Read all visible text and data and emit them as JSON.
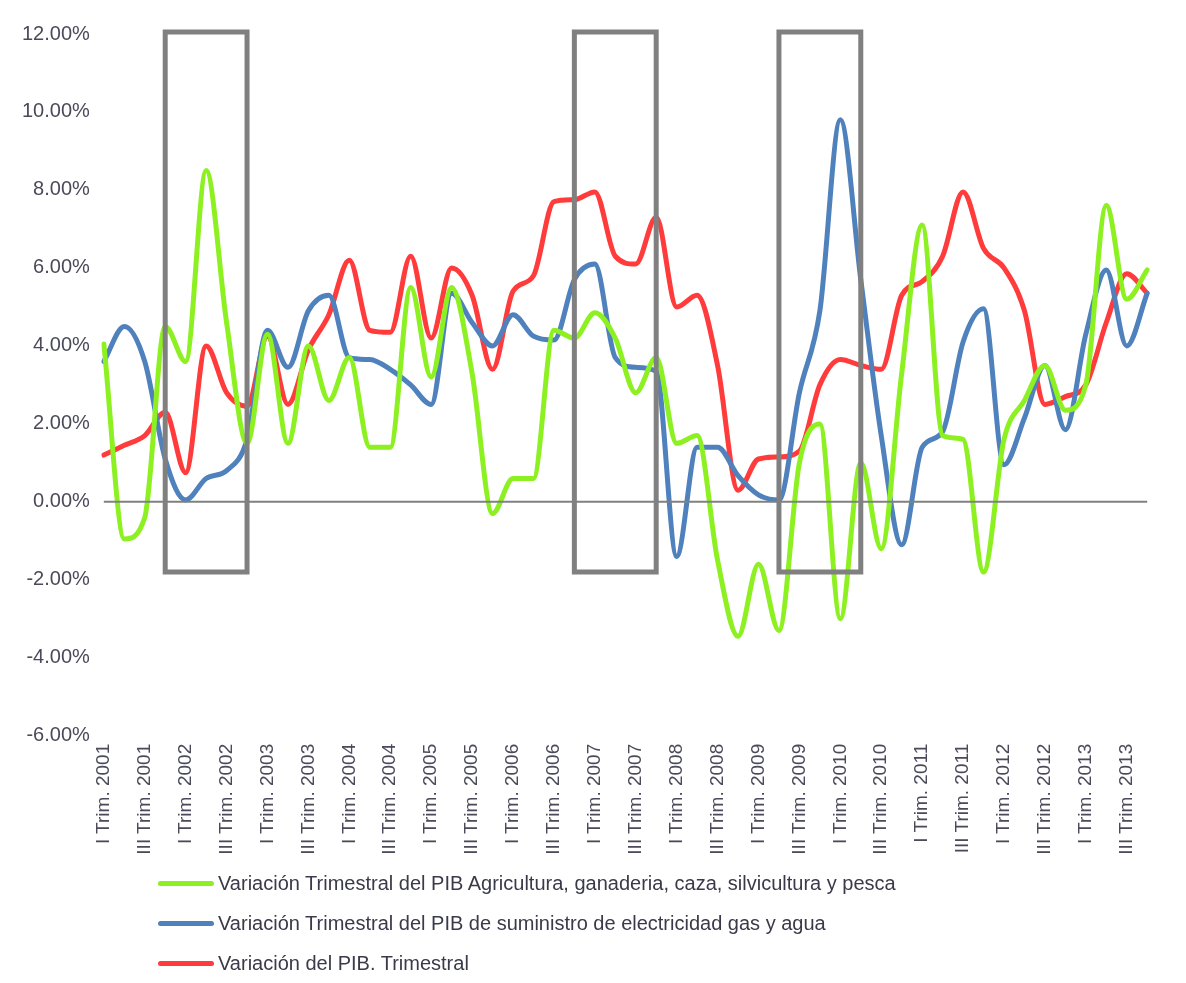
{
  "chart_data": {
    "type": "line",
    "categories": [
      "I Trim. 2001",
      null,
      "III Trim. 2001",
      null,
      "I Trim. 2002",
      null,
      "III Trim. 2002",
      null,
      "I Trim. 2003",
      null,
      "III Trim. 2003",
      null,
      "I Trim. 2004",
      null,
      "III Trim. 2004",
      null,
      "I Trim. 2005",
      null,
      "III Trim. 2005",
      null,
      "I Trim. 2006",
      null,
      "III Trim. 2006",
      null,
      "I Trim. 2007",
      null,
      "III Trim. 2007",
      null,
      "I Trim. 2008",
      null,
      "III Trim. 2008",
      null,
      "I Trim. 2009",
      null,
      "III Trim. 2009",
      null,
      "I Trim. 2010",
      null,
      "III Trim. 2010",
      null,
      "I Trim. 2011",
      null,
      "III Trim. 2011",
      null,
      "I Trim. 2012",
      null,
      "III Trim. 2012",
      null,
      "I Trim. 2013",
      null,
      "III Trim. 2013",
      null
    ],
    "series": [
      {
        "name": "Variación Trimestral del PIB Agricultura, ganaderia, caza, silvicultura y pesca",
        "color": "#8cf021",
        "values": [
          4.05,
          -0.95,
          -0.4,
          4.5,
          3.6,
          8.5,
          4.6,
          1.5,
          4.3,
          1.5,
          4.0,
          2.6,
          3.7,
          1.4,
          1.4,
          5.5,
          3.2,
          5.5,
          3.3,
          -0.3,
          0.6,
          0.6,
          4.4,
          4.2,
          4.85,
          4.2,
          2.8,
          3.7,
          1.5,
          1.7,
          -1.5,
          -3.45,
          -1.6,
          -3.3,
          1.0,
          2.0,
          -3.0,
          1.0,
          -1.2,
          3.3,
          7.1,
          1.7,
          1.6,
          -1.8,
          1.6,
          2.6,
          3.5,
          2.35,
          3.0,
          7.6,
          5.2,
          5.95
        ]
      },
      {
        "name": "Variación Trimestral del PIB de suministro de electricidad gas y agua",
        "color": "#4f81bd",
        "values": [
          3.6,
          4.5,
          3.6,
          1.1,
          0.05,
          0.6,
          0.8,
          1.6,
          4.4,
          3.45,
          4.9,
          5.3,
          3.7,
          3.65,
          3.4,
          3.0,
          2.5,
          5.35,
          4.6,
          4.0,
          4.8,
          4.25,
          4.15,
          5.7,
          6.1,
          3.7,
          3.45,
          3.35,
          -1.4,
          1.4,
          1.4,
          0.67,
          0.18,
          0.05,
          2.8,
          4.9,
          9.8,
          5.7,
          1.7,
          -1.1,
          1.4,
          1.8,
          4.1,
          4.95,
          0.95,
          2.15,
          3.5,
          1.85,
          4.3,
          5.95,
          4.0,
          5.35
        ]
      },
      {
        "name": "Variación del PIB. Trimestral",
        "color": "#ff3b3b",
        "values": [
          1.2,
          1.45,
          1.7,
          2.3,
          0.75,
          4.0,
          2.8,
          2.45,
          4.25,
          2.5,
          3.9,
          4.8,
          6.2,
          4.4,
          4.35,
          6.3,
          4.2,
          6.0,
          5.3,
          3.4,
          5.4,
          5.8,
          7.7,
          7.75,
          7.95,
          6.3,
          6.1,
          7.3,
          5.0,
          5.3,
          3.5,
          0.3,
          1.1,
          1.15,
          1.3,
          3.0,
          3.65,
          3.5,
          3.4,
          5.3,
          5.65,
          6.3,
          7.95,
          6.5,
          6.0,
          4.9,
          2.5,
          2.7,
          3.0,
          4.6,
          5.85,
          5.35
        ]
      }
    ],
    "ylim": [
      -6,
      12
    ],
    "yticks": [
      {
        "value": -6,
        "label": "-6.00%"
      },
      {
        "value": -4,
        "label": "-4.00%"
      },
      {
        "value": -2,
        "label": "-2.00%"
      },
      {
        "value": 0,
        "label": "0.00%"
      },
      {
        "value": 2,
        "label": "2.00%"
      },
      {
        "value": 4,
        "label": "4.00%"
      },
      {
        "value": 6,
        "label": "6.00%"
      },
      {
        "value": 8,
        "label": "8.00%"
      },
      {
        "value": 10,
        "label": "10.00%"
      },
      {
        "value": 12,
        "label": "12.00%"
      }
    ],
    "ref_lines": [
      {
        "axis": "y",
        "value": 0,
        "color": "#808080"
      }
    ],
    "grid": false,
    "legend": "bottom",
    "marker": "none",
    "line_style": "solid"
  }
}
